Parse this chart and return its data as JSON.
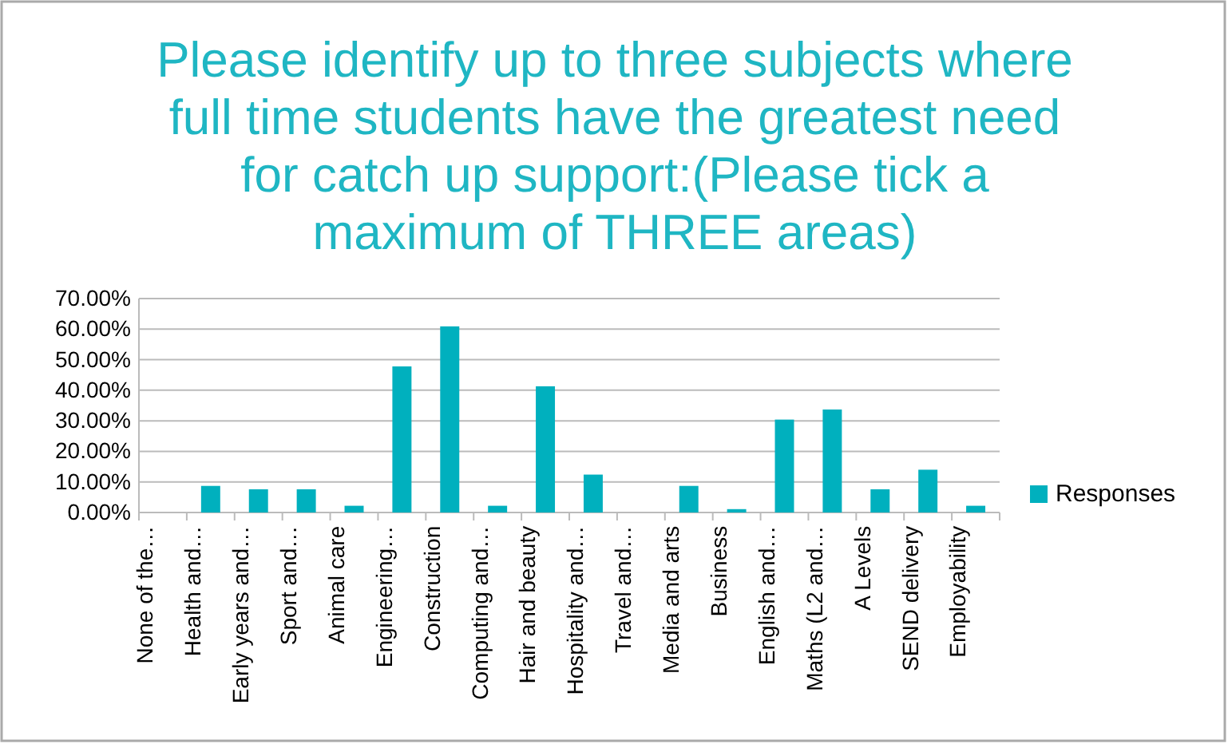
{
  "chart_data": {
    "type": "bar",
    "title": "Please identify up to three subjects where full time students have the greatest need for catch up support:(Please tick a maximum of THREE areas)",
    "categories": [
      "None of the…",
      "Health and…",
      "Early years and…",
      "Sport and…",
      "Animal care",
      "Engineering…",
      "Construction",
      "Computing and…",
      "Hair and beauty",
      "Hospitality and…",
      "Travel and…",
      "Media and arts",
      "Business",
      "English and…",
      "Maths (L2 and…",
      "A Levels",
      "SEND delivery",
      "Employability"
    ],
    "series": [
      {
        "name": "Responses",
        "color": "#00b0be",
        "values": [
          0,
          8.7,
          7.6,
          7.6,
          2.2,
          47.8,
          60.9,
          2.2,
          41.3,
          12.4,
          0,
          8.7,
          1.1,
          30.4,
          33.7,
          7.6,
          14,
          2.2
        ]
      }
    ],
    "ylim": [
      0,
      70
    ],
    "yticks": [
      {
        "value": 0,
        "label": "0.00%"
      },
      {
        "value": 10,
        "label": "10.00%"
      },
      {
        "value": 20,
        "label": "20.00%"
      },
      {
        "value": 30,
        "label": "30.00%"
      },
      {
        "value": 40,
        "label": "40.00%"
      },
      {
        "value": 50,
        "label": "50.00%"
      },
      {
        "value": 60,
        "label": "60.00%"
      },
      {
        "value": 70,
        "label": "70.00%"
      }
    ],
    "grid": "y",
    "legend": "right"
  }
}
